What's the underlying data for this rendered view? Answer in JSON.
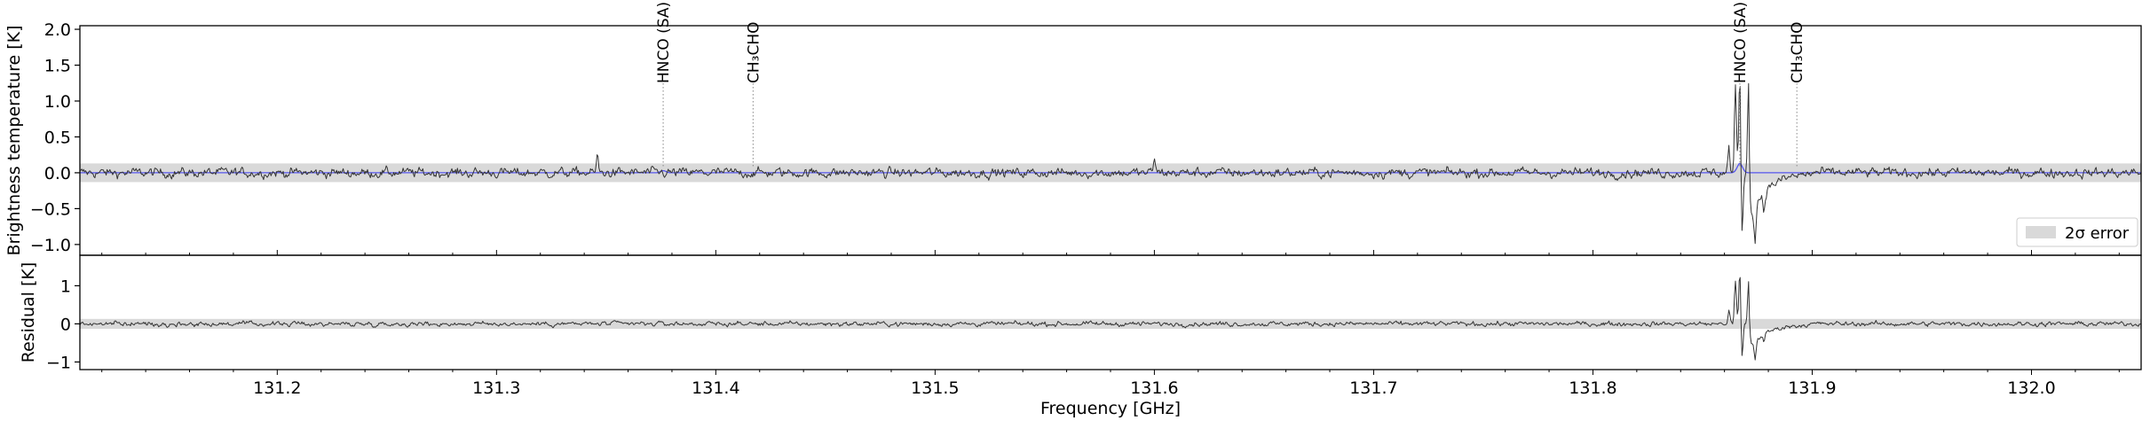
{
  "chart_data": [
    {
      "type": "line",
      "panel": "spectrum",
      "xlabel": "",
      "ylabel": "Brightness temperature [K]",
      "xlim": [
        131.11,
        132.05
      ],
      "ylim": [
        -1.15,
        2.05
      ],
      "yticks": [
        2.0,
        1.5,
        1.0,
        0.5,
        0.0,
        -0.5,
        -1.0
      ],
      "ytick_labels": [
        "2.0",
        "1.5",
        "1.0",
        "0.5",
        "0.0",
        "−0.5",
        "−1.0"
      ],
      "grid": false,
      "legend": {
        "placement": "bottom-right",
        "entries": [
          {
            "label": "2σ error",
            "color": "#d9d9d9"
          }
        ]
      },
      "error_band": {
        "lower": -0.13,
        "upper": 0.13,
        "color": "#d9d9d9"
      },
      "series": [
        {
          "style": "observed spectrum",
          "color": "#333333",
          "noise_rms": 0.045,
          "features": [
            {
              "x": 131.346,
              "y": 0.22
            },
            {
              "x": 131.6,
              "y": 0.22
            },
            {
              "x": 131.862,
              "y": 0.35
            },
            {
              "x": 131.865,
              "y": 1.2
            },
            {
              "x": 131.867,
              "y": 1.35
            },
            {
              "x": 131.868,
              "y": -0.95
            },
            {
              "x": 131.871,
              "y": 1.25
            },
            {
              "x": 131.874,
              "y": -0.5
            },
            {
              "x": 131.878,
              "y": -0.25
            }
          ]
        },
        {
          "style": "model",
          "color": "#5555ee",
          "features": [
            {
              "x": 131.376,
              "y": 0.03
            },
            {
              "x": 131.867,
              "y": 0.13
            }
          ]
        }
      ],
      "line_markers": [
        {
          "x": 131.376,
          "label": "HNCO (SA)"
        },
        {
          "x": 131.417,
          "label": "CH₃CHO"
        },
        {
          "x": 131.867,
          "label": "HNCO (SA)"
        },
        {
          "x": 131.893,
          "label": "CH₃CHO"
        }
      ]
    },
    {
      "type": "line",
      "panel": "residual",
      "xlabel": "Frequency [GHz]",
      "ylabel": "Residual [K]",
      "xlim": [
        131.11,
        132.05
      ],
      "ylim": [
        -1.2,
        1.8
      ],
      "xticks": [
        131.2,
        131.3,
        131.4,
        131.5,
        131.6,
        131.7,
        131.8,
        131.9,
        132.0
      ],
      "xtick_labels": [
        "131.2",
        "131.3",
        "131.4",
        "131.5",
        "131.6",
        "131.7",
        "131.8",
        "131.9",
        "132.0"
      ],
      "yticks": [
        1,
        0,
        -1
      ],
      "ytick_labels": [
        "1",
        "0",
        "−1"
      ],
      "grid": false,
      "error_band": {
        "lower": -0.13,
        "upper": 0.13,
        "color": "#d9d9d9"
      },
      "series": [
        {
          "style": "residual",
          "color": "#333333",
          "noise_rms": 0.04,
          "features": [
            {
              "x": 131.862,
              "y": 0.35
            },
            {
              "x": 131.865,
              "y": 1.1
            },
            {
              "x": 131.867,
              "y": 1.4
            },
            {
              "x": 131.868,
              "y": -1.0
            },
            {
              "x": 131.871,
              "y": 1.15
            },
            {
              "x": 131.874,
              "y": -0.45
            },
            {
              "x": 131.878,
              "y": -0.2
            }
          ]
        }
      ]
    }
  ]
}
